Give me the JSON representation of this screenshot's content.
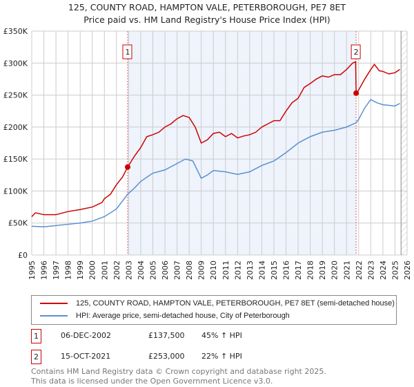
{
  "chart_data": {
    "type": "line",
    "title": "125, COUNTY ROAD, HAMPTON VALE, PETERBOROUGH, PE7 8ET",
    "subtitle": "Price paid vs. HM Land Registry's House Price Index (HPI)",
    "xlim": [
      1995,
      2026
    ],
    "ylim": [
      0,
      350000
    ],
    "y_ticks": [
      {
        "v": 0,
        "l": "£0"
      },
      {
        "v": 50000,
        "l": "£50K"
      },
      {
        "v": 100000,
        "l": "£100K"
      },
      {
        "v": 150000,
        "l": "£150K"
      },
      {
        "v": 200000,
        "l": "£200K"
      },
      {
        "v": 250000,
        "l": "£250K"
      },
      {
        "v": 300000,
        "l": "£300K"
      },
      {
        "v": 350000,
        "l": "£350K"
      }
    ],
    "x_ticks": [
      "1995",
      "1996",
      "1997",
      "1998",
      "1999",
      "2000",
      "2001",
      "2002",
      "2003",
      "2004",
      "2005",
      "2006",
      "2007",
      "2008",
      "2009",
      "2010",
      "2011",
      "2012",
      "2013",
      "2014",
      "2015",
      "2016",
      "2017",
      "2018",
      "2019",
      "2020",
      "2021",
      "2022",
      "2023",
      "2024",
      "2025",
      "2026"
    ],
    "grid": true,
    "shaded_region": [
      2002.92,
      2021.79
    ],
    "hatched_from": 2025.5,
    "series": [
      {
        "name": "125, COUNTY ROAD, HAMPTON VALE, PETERBOROUGH, PE7 8ET (semi-detached house)",
        "color": "#cc0000",
        "x": [
          1995,
          1995.3,
          1996,
          1997,
          1998,
          1999,
          2000,
          2000.8,
          2001,
          2001.5,
          2002,
          2002.5,
          2002.92,
          2003.5,
          2004,
          2004.5,
          2005,
          2005.5,
          2006,
          2006.5,
          2007,
          2007.5,
          2008,
          2008.5,
          2009,
          2009.5,
          2010,
          2010.5,
          2011,
          2011.5,
          2012,
          2012.5,
          2013,
          2013.5,
          2014,
          2014.5,
          2015,
          2015.5,
          2016,
          2016.5,
          2017,
          2017.5,
          2018,
          2018.5,
          2019,
          2019.5,
          2020,
          2020.5,
          2021,
          2021.5,
          2021.75,
          2021.79,
          2022,
          2022.5,
          2023,
          2023.3,
          2023.7,
          2024,
          2024.5,
          2025,
          2025.4
        ],
        "y": [
          60000,
          66000,
          63000,
          63000,
          68000,
          71000,
          75000,
          82000,
          88000,
          95000,
          110000,
          122000,
          137500,
          155000,
          168000,
          185000,
          188000,
          192000,
          200000,
          205000,
          213000,
          218000,
          215000,
          200000,
          175000,
          180000,
          190000,
          192000,
          185000,
          190000,
          183000,
          186000,
          188000,
          192000,
          200000,
          205000,
          210000,
          210000,
          225000,
          238000,
          245000,
          262000,
          268000,
          275000,
          280000,
          278000,
          282000,
          282000,
          290000,
          300000,
          302000,
          253000,
          258000,
          275000,
          290000,
          298000,
          288000,
          287000,
          283000,
          285000,
          290000
        ]
      },
      {
        "name": "HPI: Average price, semi-detached house, City of Peterborough",
        "color": "#5b8fd0",
        "x": [
          1995,
          1996,
          1997,
          1998,
          1999,
          2000,
          2001,
          2002,
          2002.92,
          2003.5,
          2004,
          2005,
          2006,
          2007,
          2007.7,
          2008.3,
          2009,
          2009.5,
          2010,
          2011,
          2012,
          2013,
          2014,
          2015,
          2016,
          2017,
          2018,
          2019,
          2020,
          2021,
          2021.8,
          2022,
          2022.5,
          2023,
          2023.5,
          2024,
          2025,
          2025.4
        ],
        "y": [
          45000,
          44000,
          46000,
          48000,
          50000,
          53000,
          60000,
          72000,
          95000,
          105000,
          115000,
          128000,
          133000,
          143000,
          150000,
          147000,
          120000,
          125000,
          132000,
          130000,
          126000,
          130000,
          140000,
          147000,
          160000,
          175000,
          185000,
          192000,
          195000,
          200000,
          207000,
          212000,
          230000,
          243000,
          238000,
          235000,
          233000,
          237000
        ]
      }
    ],
    "sales": [
      {
        "n": "1",
        "x": 2002.92,
        "y": 137500,
        "date": "06-DEC-2002",
        "price": "£137,500",
        "hpi": "45% ↑ HPI"
      },
      {
        "n": "2",
        "x": 2021.79,
        "y": 253000,
        "date": "15-OCT-2021",
        "price": "£253,000",
        "hpi": "22% ↑ HPI"
      }
    ]
  },
  "footer": {
    "line1": "Contains HM Land Registry data © Crown copyright and database right 2025.",
    "line2": "This data is licensed under the Open Government Licence v3.0."
  }
}
